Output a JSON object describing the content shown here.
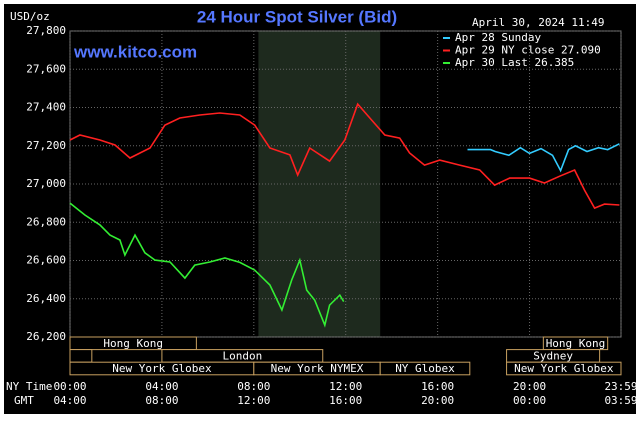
{
  "chart_data": {
    "type": "line",
    "title": "24 Hour Spot Silver (Bid)",
    "date_text": "April 30, 2024 11:49",
    "watermark": "www.kitco.com",
    "y_label": "USD/oz",
    "x_label": "NY Time",
    "x2_label": "GMT",
    "ylim": [
      26200,
      27800
    ],
    "yticks": [
      {
        "value": 26200,
        "label": "26,200"
      },
      {
        "value": 26400,
        "label": "26,400"
      },
      {
        "value": 26600,
        "label": "26,600"
      },
      {
        "value": 26800,
        "label": "26,800"
      },
      {
        "value": 27000,
        "label": "27,000"
      },
      {
        "value": 27200,
        "label": "27,200"
      },
      {
        "value": 27400,
        "label": "27,400"
      },
      {
        "value": 27600,
        "label": "27,600"
      },
      {
        "value": 27800,
        "label": "27,800"
      }
    ],
    "xlim": [
      0,
      23.98
    ],
    "xticks": [
      {
        "value": 0,
        "label": "00:00"
      },
      {
        "value": 4,
        "label": "04:00"
      },
      {
        "value": 8,
        "label": "08:00"
      },
      {
        "value": 12,
        "label": "12:00"
      },
      {
        "value": 16,
        "label": "16:00"
      },
      {
        "value": 20,
        "label": "20:00"
      },
      {
        "value": 23.98,
        "label": "23:59"
      }
    ],
    "gmt_labels": [
      "04:00",
      "08:00",
      "12:00",
      "16:00",
      "20:00",
      "00:00",
      "03:59"
    ],
    "grid": true,
    "highlight": {
      "start": 8.2,
      "end": 13.5
    },
    "sessions": [
      [
        {
          "name": "Hong Kong",
          "start": 0,
          "end": 5.5
        },
        {
          "name": "Hong Kong",
          "start": 20.6,
          "end": 23.4
        }
      ],
      [
        {
          "name": null,
          "start": 0,
          "end": 0.95
        },
        {
          "name": "London",
          "start": 4,
          "end": 11
        },
        {
          "name": "Sydney",
          "start": 19,
          "end": 23.05
        }
      ],
      [
        {
          "name": "New York Globex",
          "start": 0,
          "end": 8
        },
        {
          "name": "New York NYMEX",
          "start": 8,
          "end": 13.5
        },
        {
          "name": "NY Globex",
          "start": 13.5,
          "end": 17.4
        },
        {
          "name": "New York Globex",
          "start": 19,
          "end": 23.98
        }
      ]
    ],
    "series": [
      {
        "name": "Apr 28 Sunday",
        "color": "#33ccff",
        "x": [
          17.3,
          18.3,
          18.5,
          19.1,
          19.6,
          20,
          20.5,
          21,
          21.35,
          21.7,
          22,
          22.5,
          23,
          23.4,
          23.91
        ],
        "values": [
          27180,
          27180,
          27170,
          27150,
          27190,
          27160,
          27185,
          27150,
          27070,
          27180,
          27200,
          27170,
          27190,
          27180,
          27210
        ]
      },
      {
        "name": "Apr 29 NY close 27.090",
        "color": "#ff2020",
        "x": [
          0,
          0.43,
          1.3,
          1.96,
          2.61,
          3.48,
          4.13,
          4.78,
          5.65,
          6.52,
          7.39,
          8.04,
          8.7,
          9.57,
          9.91,
          10.43,
          11.3,
          11.96,
          12.52,
          13.13,
          13.7,
          14.35,
          14.78,
          15.43,
          16.09,
          16.96,
          17.83,
          18.48,
          19.13,
          20,
          20.65,
          21.3,
          21.96,
          22.39,
          22.83,
          23.26,
          23.91
        ],
        "values": [
          27230,
          27256,
          27230,
          27204,
          27136,
          27188,
          27308,
          27345,
          27361,
          27371,
          27361,
          27308,
          27188,
          27152,
          27047,
          27188,
          27120,
          27230,
          27418,
          27334,
          27256,
          27240,
          27162,
          27099,
          27125,
          27099,
          27073,
          26994,
          27031,
          27031,
          27005,
          27040,
          27073,
          26968,
          26874,
          26895,
          26890
        ]
      },
      {
        "name": "Apr 30 Last 26.385",
        "color": "#33ee33",
        "x": [
          0,
          0.65,
          1.3,
          1.74,
          2.17,
          2.39,
          2.83,
          3.26,
          3.7,
          4.35,
          5,
          5.43,
          6.09,
          6.74,
          7.39,
          8.04,
          8.7,
          9.22,
          9.65,
          10,
          10.3,
          10.65,
          11.09,
          11.3,
          11.74,
          11.91
        ],
        "values": [
          26900,
          26838,
          26786,
          26733,
          26707,
          26629,
          26733,
          26640,
          26602,
          26592,
          26508,
          26576,
          26592,
          26613,
          26590,
          26550,
          26472,
          26341,
          26498,
          26602,
          26445,
          26393,
          26262,
          26367,
          26419,
          26385
        ]
      }
    ]
  }
}
